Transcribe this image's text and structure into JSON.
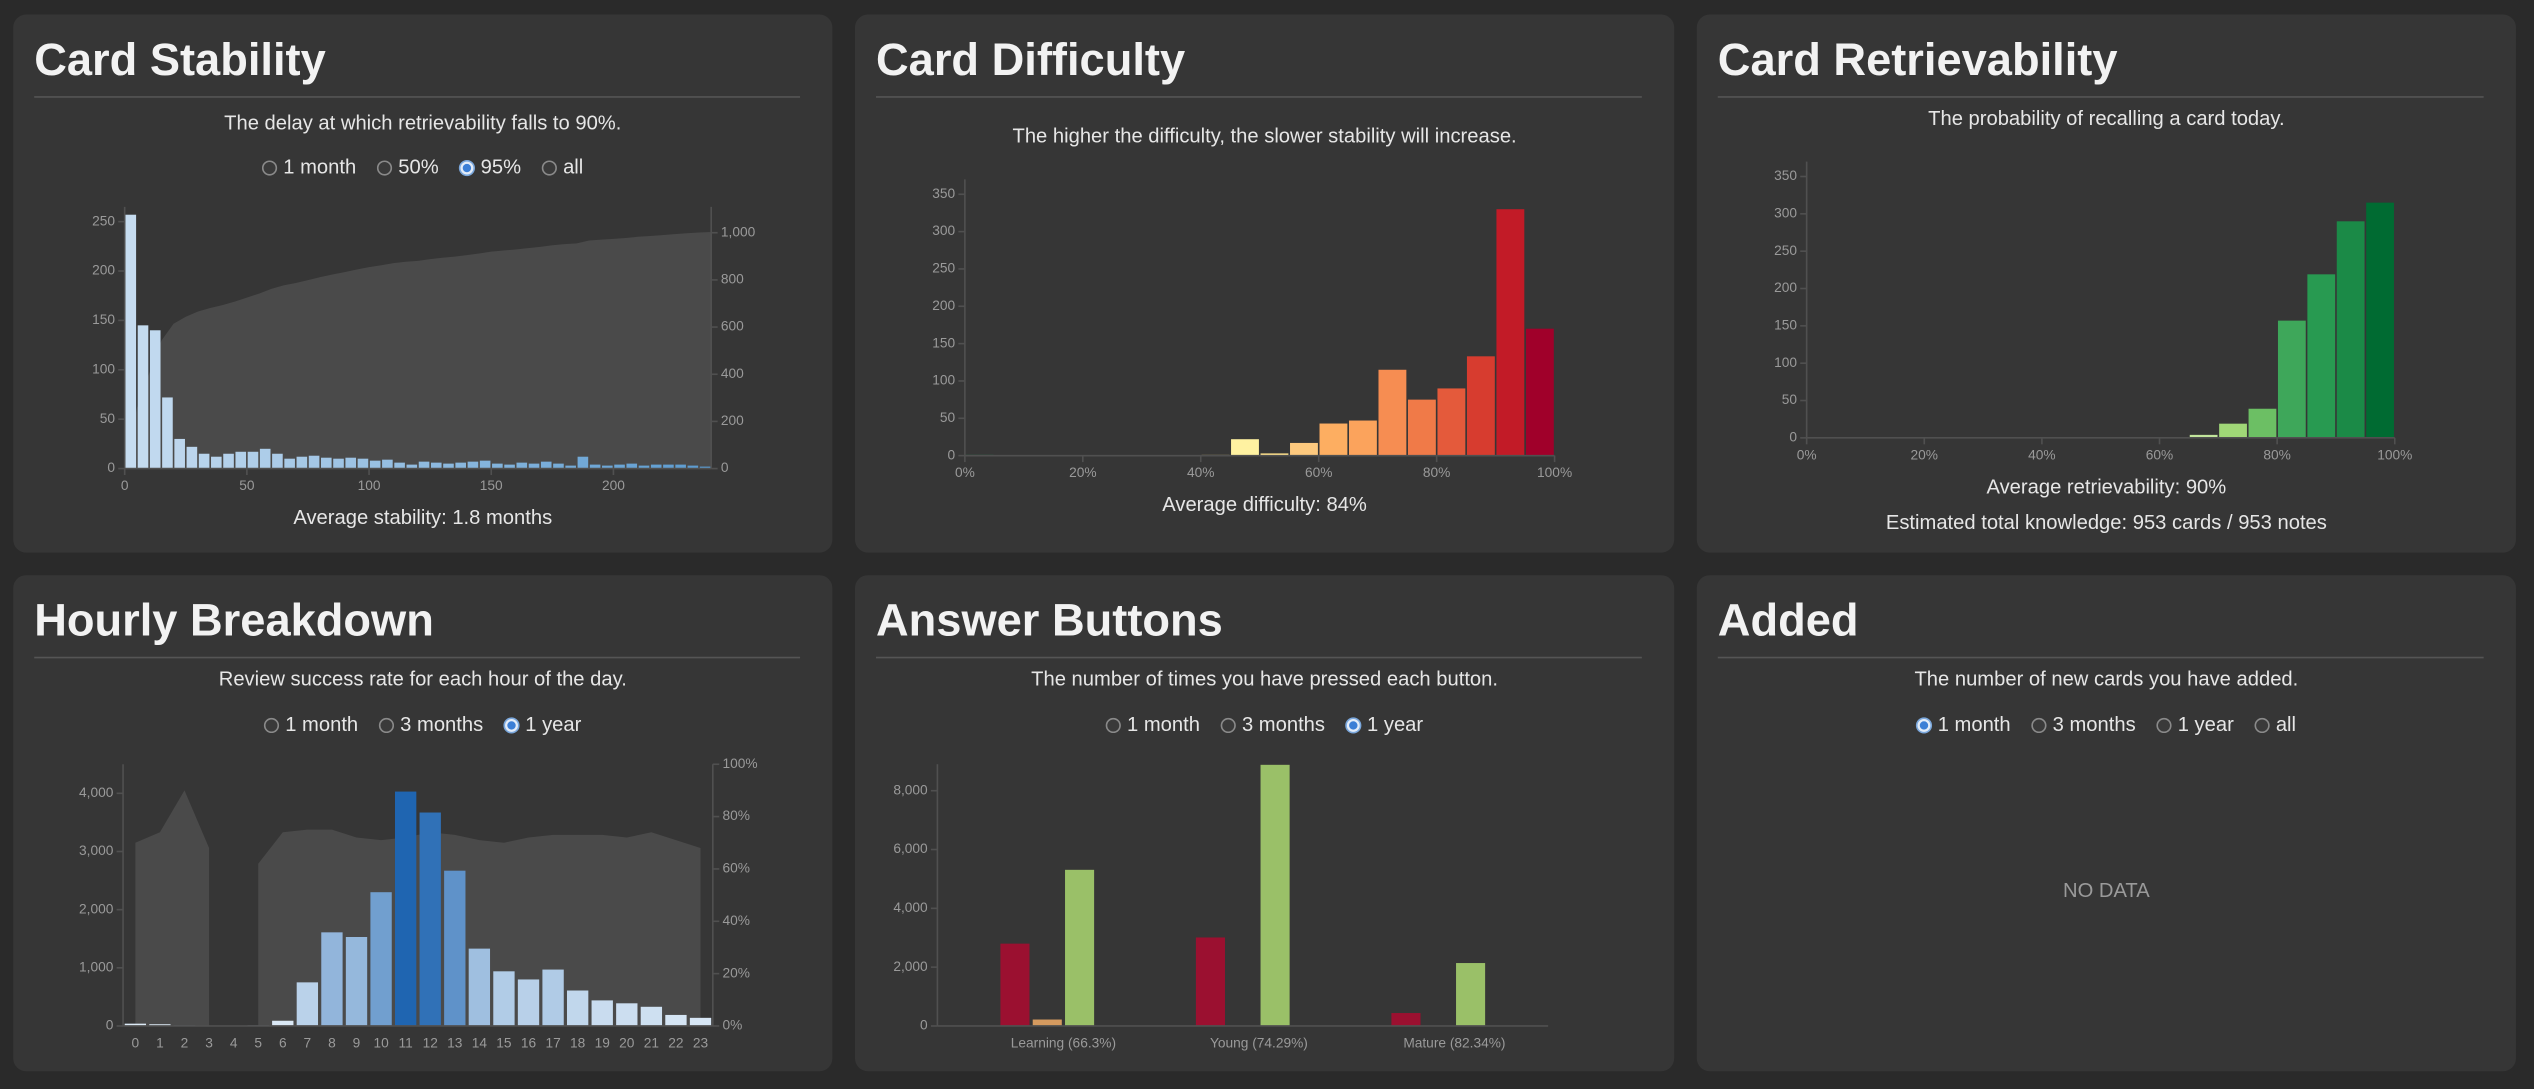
{
  "chart_data": [
    {
      "type": "histogram",
      "title": "Card Stability",
      "subtitle": "The delay at which retrievability falls to 90%.",
      "options": [
        "1 month",
        "50%",
        "95%",
        "all"
      ],
      "selected": 2,
      "footer": [
        "Average stability: 1.8 months"
      ],
      "bins": [
        0,
        5,
        10,
        15,
        20,
        25,
        30,
        35,
        40,
        45,
        50,
        55,
        60,
        65,
        70,
        75,
        80,
        85,
        90,
        95,
        100,
        105,
        110,
        115,
        120,
        125,
        130,
        135,
        140,
        145,
        150,
        155,
        160,
        165,
        170,
        175,
        180,
        185,
        190,
        195,
        200,
        205,
        210,
        215,
        220,
        225,
        230,
        235,
        240
      ],
      "values": [
        257,
        145,
        140,
        72,
        30,
        22,
        15,
        12,
        15,
        17,
        17,
        20,
        15,
        10,
        12,
        13,
        11,
        10,
        11,
        10,
        8,
        9,
        6,
        4,
        7,
        6,
        5,
        6,
        7,
        8,
        5,
        4,
        6,
        5,
        7,
        5,
        3,
        12,
        4,
        3,
        4,
        5,
        3,
        4,
        4,
        4,
        3,
        2
      ],
      "color_scale": [
        "#c6dcf0",
        "#5b9bd0"
      ],
      "area_color": "#4a4a4a",
      "xlim": [
        0,
        240
      ],
      "xticks": [
        0,
        50,
        100,
        150,
        200
      ],
      "ylim": [
        0,
        265
      ],
      "yticks": [
        0,
        50,
        100,
        150,
        200,
        250
      ],
      "y2lim": [
        0,
        1110
      ],
      "y2ticks": [
        0,
        200,
        400,
        600,
        800,
        {
          "value": 1000,
          "label": "1,000"
        }
      ]
    },
    {
      "type": "histogram",
      "title": "Card Difficulty",
      "subtitle": "The higher the difficulty, the slower stability will increase.",
      "footer": [
        "Average difficulty: 84%"
      ],
      "bins": [
        0,
        5,
        10,
        15,
        20,
        25,
        30,
        35,
        40,
        45,
        50,
        55,
        60,
        65,
        70,
        75,
        80,
        85,
        90,
        95,
        100
      ],
      "values": [
        1,
        0,
        0,
        0,
        0,
        0,
        0,
        0,
        1,
        22,
        3,
        17,
        43,
        47,
        115,
        75,
        90,
        133,
        330,
        170
      ],
      "colors": [
        "#1a9850",
        "#4eb15d",
        "#7fc866",
        "#abdb6d",
        "#d2ec87",
        "#eef8a8",
        "#fefebd",
        "#fff0a6",
        "#ffe38f",
        "#fff2a1",
        "#fee08b",
        "#fdc97e",
        "#fdae61",
        "#fba35c",
        "#f68d52",
        "#f07a48",
        "#e45a3b",
        "#d73c2f",
        "#c21b27",
        "#a0002a"
      ],
      "xlim": [
        0,
        100
      ],
      "xticks": [
        {
          "value": 0,
          "label": "0%"
        },
        {
          "value": 20,
          "label": "20%"
        },
        {
          "value": 40,
          "label": "40%"
        },
        {
          "value": 60,
          "label": "60%"
        },
        {
          "value": 80,
          "label": "80%"
        },
        {
          "value": 100,
          "label": "100%"
        }
      ],
      "ylim": [
        0,
        370
      ],
      "yticks": [
        0,
        50,
        100,
        150,
        200,
        250,
        300,
        350
      ]
    },
    {
      "type": "histogram",
      "title": "Card Retrievability",
      "subtitle": "The probability of recalling a card today.",
      "footer": [
        "Average retrievability: 90%",
        "Estimated total knowledge: 953 cards / 953 notes"
      ],
      "bins": [
        0,
        5,
        10,
        15,
        20,
        25,
        30,
        35,
        40,
        45,
        50,
        55,
        60,
        65,
        70,
        75,
        80,
        85,
        90,
        95,
        100
      ],
      "values": [
        0,
        0,
        0,
        0,
        0,
        0,
        0,
        0,
        0,
        0,
        0,
        0,
        1,
        4,
        19,
        39,
        157,
        219,
        290,
        315
      ],
      "colors": [
        "#a50026",
        "#c21b27",
        "#d73c2f",
        "#e45a3b",
        "#f07a48",
        "#f68d52",
        "#fba35c",
        "#fdc97e",
        "#fee08b",
        "#fff2a1",
        "#f3f9b0",
        "#e2f2a0",
        "#cfea96",
        "#c2e59c",
        "#a0d777",
        "#6cbf64",
        "#3ea75a",
        "#289a51",
        "#1b8a47",
        "#006b32"
      ],
      "xlim": [
        0,
        100
      ],
      "xticks": [
        {
          "value": 0,
          "label": "0%"
        },
        {
          "value": 20,
          "label": "20%"
        },
        {
          "value": 40,
          "label": "40%"
        },
        {
          "value": 60,
          "label": "60%"
        },
        {
          "value": 80,
          "label": "80%"
        },
        {
          "value": 100,
          "label": "100%"
        }
      ],
      "ylim": [
        0,
        370
      ],
      "yticks": [
        0,
        50,
        100,
        150,
        200,
        250,
        300,
        350
      ]
    },
    {
      "type": "bar",
      "title": "Hourly Breakdown",
      "subtitle": "Review success rate for each hour of the day.",
      "options": [
        "1 month",
        "3 months",
        "1 year"
      ],
      "selected": 2,
      "categories": [
        "0",
        "1",
        "2",
        "3",
        "4",
        "5",
        "6",
        "7",
        "8",
        "9",
        "10",
        "11",
        "12",
        "13",
        "14",
        "15",
        "16",
        "17",
        "18",
        "19",
        "20",
        "21",
        "22",
        "23"
      ],
      "series": [
        {
          "values": [
            40,
            30,
            10,
            5,
            0,
            10,
            90,
            750,
            1610,
            1530,
            2300,
            4030,
            3670,
            2670,
            1330,
            940,
            800,
            970,
            610,
            440,
            390,
            330,
            190,
            140
          ],
          "color_scale": [
            "#deebf7",
            "#1f65b1"
          ]
        },
        {
          "axis": "y2",
          "color": "#4a4a4a",
          "values": [
            70,
            74,
            90,
            68,
            null,
            62,
            74,
            75,
            75,
            72,
            71,
            72,
            74,
            73,
            71,
            70,
            72,
            73,
            73,
            73,
            72,
            74,
            71,
            68
          ]
        }
      ],
      "ylim": [
        0,
        4500
      ],
      "yticks": [
        0,
        {
          "value": 1000,
          "label": "1,000"
        },
        {
          "value": 2000,
          "label": "2,000"
        },
        {
          "value": 3000,
          "label": "3,000"
        },
        {
          "value": 4000,
          "label": "4,000"
        }
      ],
      "y2lim": [
        0,
        100
      ],
      "y2ticks": [
        {
          "value": 0,
          "label": "0%"
        },
        {
          "value": 20,
          "label": "20%"
        },
        {
          "value": 40,
          "label": "40%"
        },
        {
          "value": 60,
          "label": "60%"
        },
        {
          "value": 80,
          "label": "80%"
        },
        {
          "value": 100,
          "label": "100%"
        }
      ]
    },
    {
      "type": "grouped",
      "title": "Answer Buttons",
      "subtitle": "The number of times you have pressed each button.",
      "options": [
        "1 month",
        "3 months",
        "1 year"
      ],
      "selected": 2,
      "categories": [
        "Learning (66.3%)",
        "Young (74.29%)",
        "Mature (82.34%)"
      ],
      "series": [
        {
          "color": "#9b1030",
          "values": [
            2800,
            3010,
            440
          ]
        },
        {
          "color": "#d49a5f",
          "values": [
            220,
            0,
            0
          ]
        },
        {
          "color": "#9ac068",
          "values": [
            5310,
            8880,
            2140
          ]
        }
      ],
      "ylim": [
        0,
        8900
      ],
      "yticks": [
        0,
        {
          "value": 2000,
          "label": "2,000"
        },
        {
          "value": 4000,
          "label": "4,000"
        },
        {
          "value": 6000,
          "label": "6,000"
        },
        {
          "value": 8000,
          "label": "8,000"
        }
      ]
    },
    {
      "type": "empty",
      "title": "Added",
      "subtitle": "The number of new cards you have added.",
      "options": [
        "1 month",
        "3 months",
        "1 year",
        "all"
      ],
      "selected": 0,
      "message": "NO DATA"
    }
  ]
}
